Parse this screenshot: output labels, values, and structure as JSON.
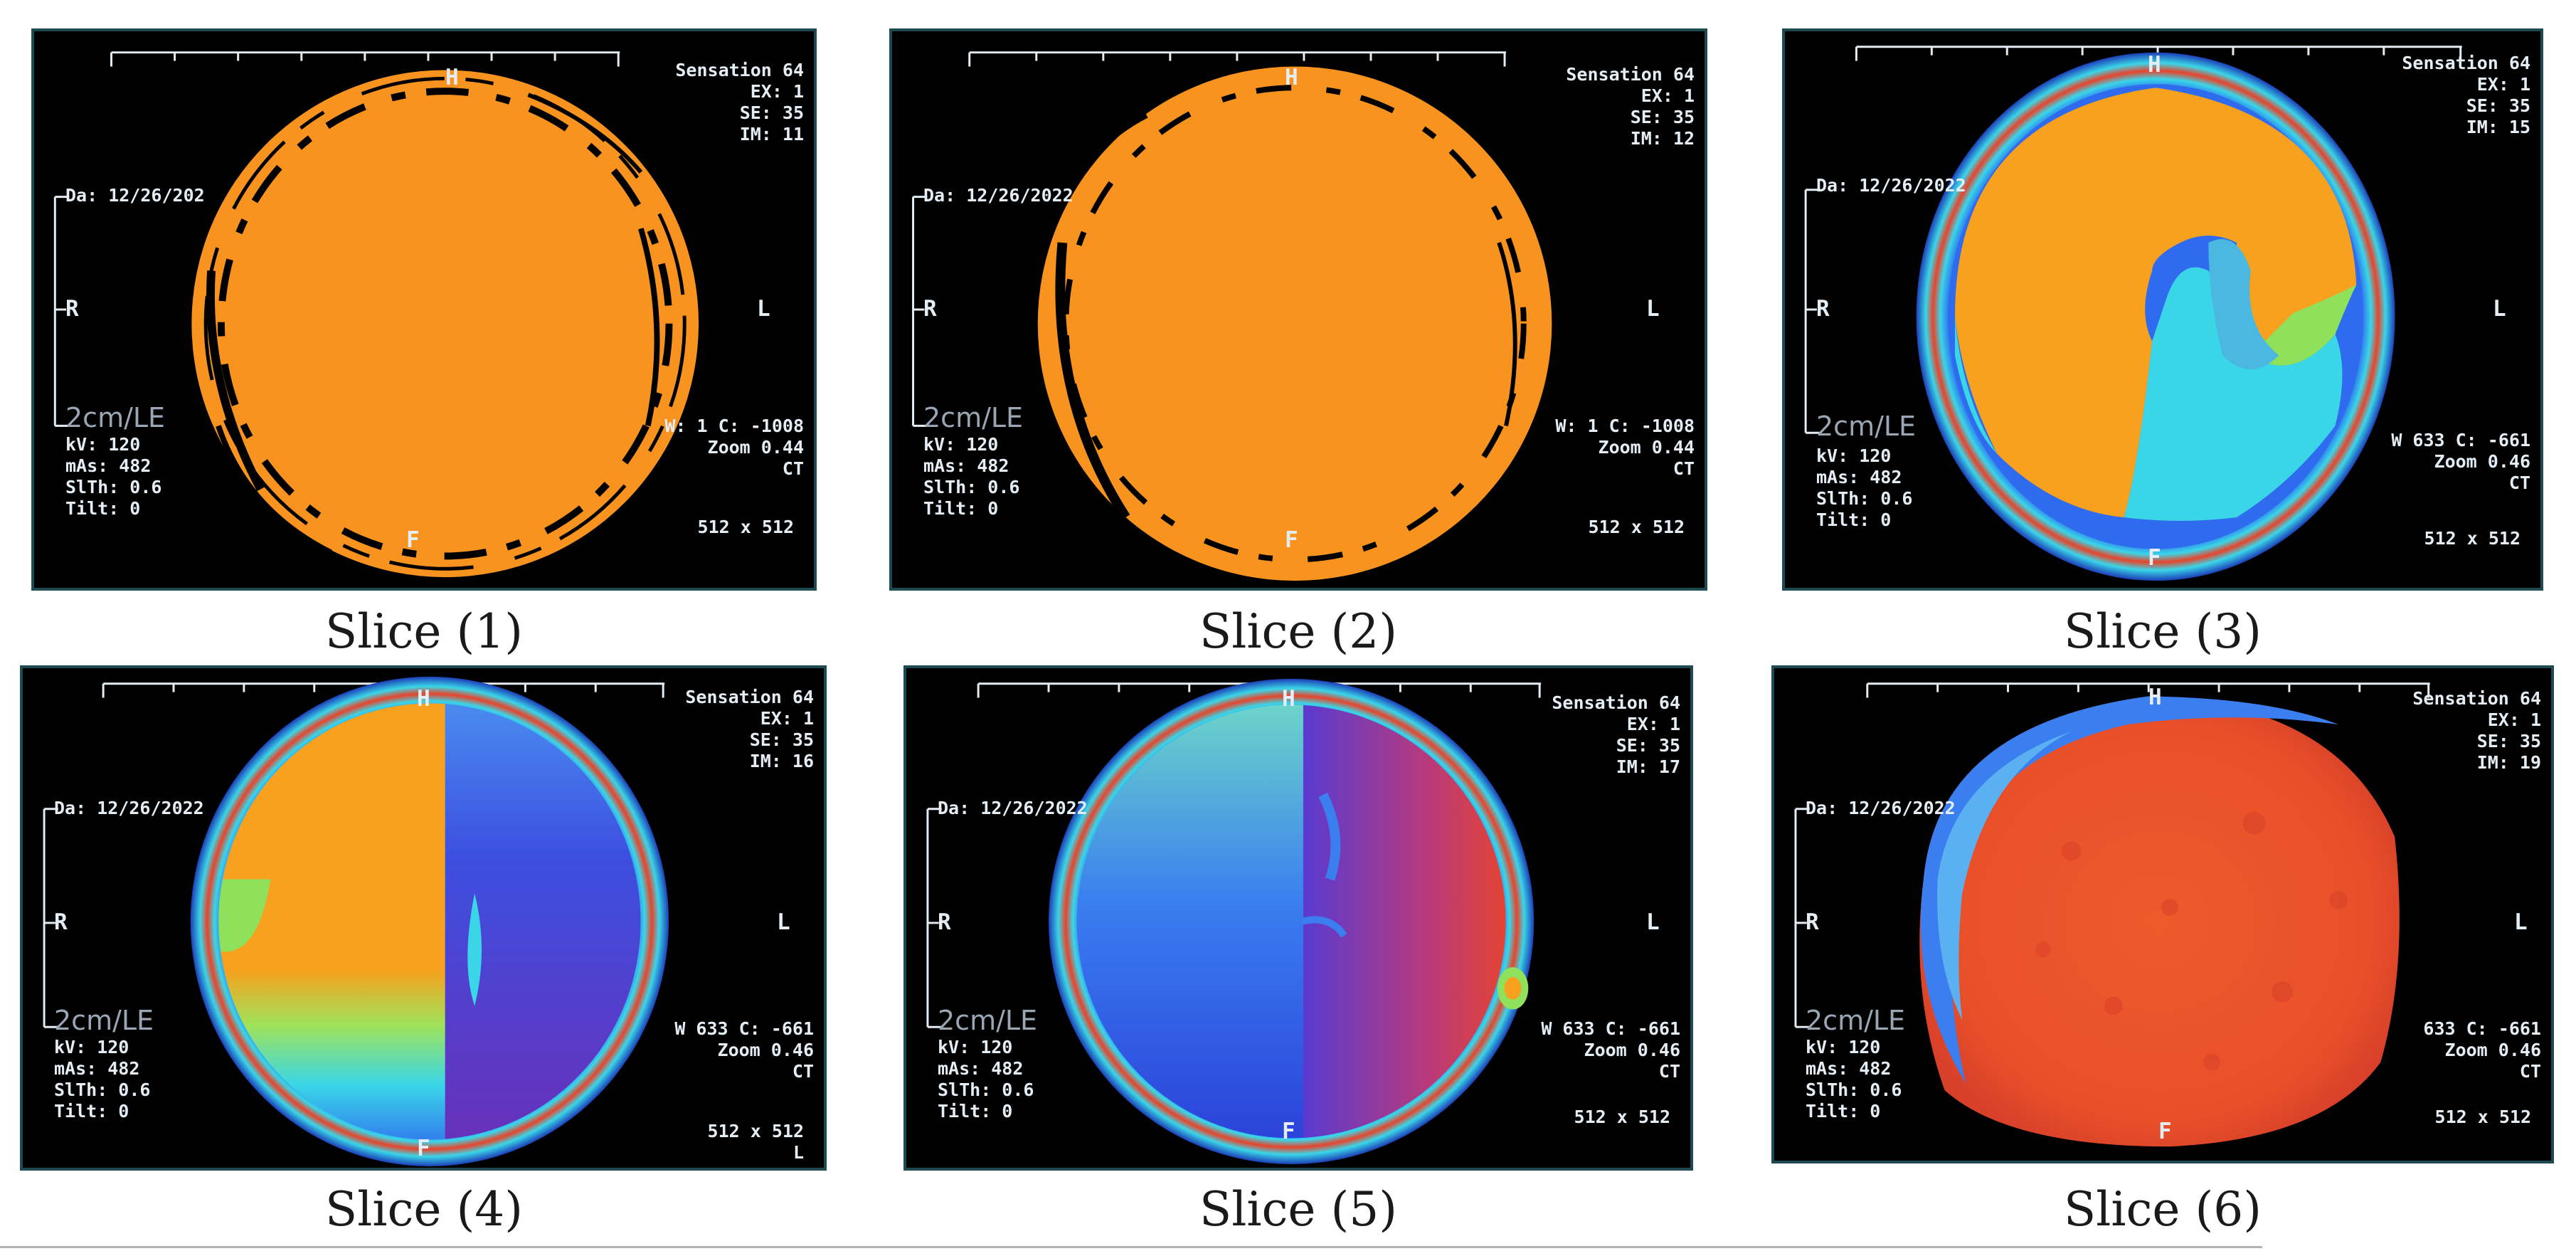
{
  "panels": [
    {
      "caption": "Slice (1)",
      "header": {
        "scanner": "Sensation 64",
        "ex": "EX: 1",
        "se": "SE: 35",
        "im": "IM: 11"
      },
      "date": "Da: 12/26/202",
      "orientation": {
        "top": "H",
        "bottom": "F",
        "left": "R",
        "right": "L"
      },
      "scale_label": "2cm/LE",
      "params": {
        "kv": "kV: 120",
        "mas": "mAs: 482",
        "slice_thickness": "SlTh: 0.6",
        "tilt": "Tilt: 0"
      },
      "window": {
        "wc": "W: 1 C: -1008",
        "zoom": "Zoom 0.44",
        "modality": "CT",
        "matrix": "512 x 512"
      }
    },
    {
      "caption": "Slice (2)",
      "header": {
        "scanner": "Sensation 64",
        "ex": "EX: 1",
        "se": "SE: 35",
        "im": "IM: 12"
      },
      "date": "Da: 12/26/2022",
      "orientation": {
        "top": "H",
        "bottom": "F",
        "left": "R",
        "right": "L"
      },
      "scale_label": "2cm/LE",
      "params": {
        "kv": "kV: 120",
        "mas": "mAs: 482",
        "slice_thickness": "SlTh: 0.6",
        "tilt": "Tilt: 0"
      },
      "window": {
        "wc": "W: 1 C: -1008",
        "zoom": "Zoom 0.44",
        "modality": "CT",
        "matrix": "512 x 512"
      }
    },
    {
      "caption": "Slice (3)",
      "header": {
        "scanner": "Sensation 64",
        "ex": "EX: 1",
        "se": "SE: 35",
        "im": "IM: 15"
      },
      "date": "Da: 12/26/2022",
      "orientation": {
        "top": "H",
        "bottom": "F",
        "left": "R",
        "right": "L"
      },
      "scale_label": "2cm/LE",
      "params": {
        "kv": "kV: 120",
        "mas": "mAs: 482",
        "slice_thickness": "SlTh: 0.6",
        "tilt": "Tilt: 0"
      },
      "window": {
        "wc": "W 633 C: -661",
        "zoom": "Zoom 0.46",
        "modality": "CT",
        "matrix": "512 x 512"
      }
    },
    {
      "caption": "Slice (4)",
      "header": {
        "scanner": "Sensation 64",
        "ex": "EX: 1",
        "se": "SE: 35",
        "im": "IM: 16"
      },
      "date": "Da: 12/26/2022",
      "orientation": {
        "top": "H",
        "bottom": "F",
        "left": "R",
        "right": "L"
      },
      "scale_label": "2cm/LE",
      "params": {
        "kv": "kV: 120",
        "mas": "mAs: 482",
        "slice_thickness": "SlTh: 0.6",
        "tilt": "Tilt: 0"
      },
      "window": {
        "wc": "W 633 C: -661",
        "zoom": "Zoom 0.46",
        "modality": "CT",
        "matrix": "512 x 512"
      },
      "extra": "L"
    },
    {
      "caption": "Slice (5)",
      "header": {
        "scanner": "Sensation 64",
        "ex": "EX: 1",
        "se": "SE: 35",
        "im": "IM: 17"
      },
      "date": "Da: 12/26/2022",
      "orientation": {
        "top": "H",
        "bottom": "F",
        "left": "R",
        "right": "L"
      },
      "scale_label": "2cm/LE",
      "params": {
        "kv": "kV: 120",
        "mas": "mAs: 482",
        "slice_thickness": "SlTh: 0.6",
        "tilt": "Tilt: 0"
      },
      "window": {
        "wc": "W 633 C: -661",
        "zoom": "Zoom 0.46",
        "modality": "CT",
        "matrix": "512 x 512"
      }
    },
    {
      "caption": "Slice (6)",
      "header": {
        "scanner": "Sensation 64",
        "ex": "EX: 1",
        "se": "SE: 35",
        "im": "IM: 19"
      },
      "date": "Da: 12/26/2022",
      "orientation": {
        "top": "H",
        "bottom": "F",
        "left": "R",
        "right": "L"
      },
      "scale_label": "2cm/LE",
      "params": {
        "kv": "kV: 120",
        "mas": "mAs: 482",
        "slice_thickness": "SlTh: 0.6",
        "tilt": "Tilt: 0"
      },
      "window": {
        "wc": "633 C: -661",
        "zoom": "Zoom 0.46",
        "modality": "CT",
        "matrix": "512 x 512"
      }
    }
  ],
  "colors": {
    "background": "#000000",
    "orange": "#f7931e",
    "red": "#e8442a",
    "blue": "#2f6bef",
    "cyan": "#3ad6e8",
    "green": "#8fe05a",
    "purple": "#5a3ad0"
  }
}
